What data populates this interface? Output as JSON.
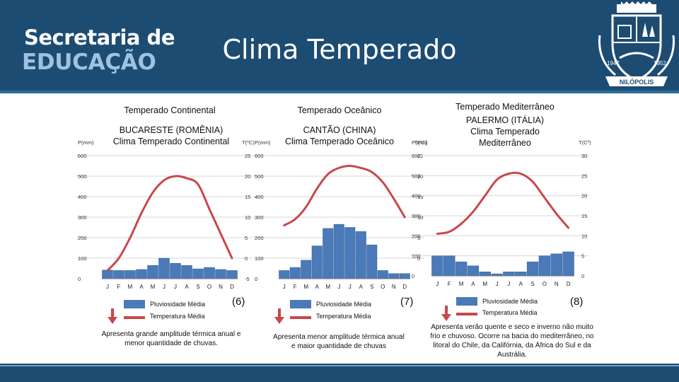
{
  "header": {
    "brand_line1": "Secretaria de",
    "brand_line2": "EDUCAÇÃO",
    "title": "Clima Temperado",
    "seal": {
      "year_left": "1947",
      "year_right": "1952",
      "city": "NILÓPOLIS"
    }
  },
  "colors": {
    "header_bg": "#1d4c73",
    "bar": "#4a7ab8",
    "temp_line": "#c8474c"
  },
  "sections": [
    {
      "heading": "Temperado Continental",
      "city_line1": "BUCARESTE (ROMÊNIA)",
      "city_line2": "Clima Temperado Continental",
      "legend_rain": "Pluviosidade Média",
      "legend_temp": "Temperatura Média",
      "figure": "(6)",
      "description": "Apresenta grande amplitude térmica anual e menor quantidade de chuvas."
    },
    {
      "heading": "Temperado Oceânico",
      "city_line1": "CANTÃO (CHINA)",
      "city_line2": "Clima Temperado Oceânico",
      "legend_rain": "Pluviosidade Média",
      "legend_temp": "Temperatura Média",
      "figure": "(7)",
      "description": "Apresenta menor amplitude térmica anual e maior quantidade de chuvas"
    },
    {
      "heading": "Temperado Mediterrâneo",
      "city_line1": "PALERMO (ITÁLIA)",
      "city_line2": "Clima Temperado",
      "city_line3": "Mediterrâneo",
      "legend_rain": "Pluviosidade Média",
      "legend_temp": "Temperatura Média",
      "figure": "(8)",
      "description": "Apresenta verão quente e seco e inverno não muito frio e chuvoso. Ocorre na bacia do mediterrâneo, no litoral do Chile, da Califórnia, da África do Sul e da Austrália."
    }
  ],
  "chart_data": [
    {
      "type": "bar",
      "categories": [
        "J",
        "F",
        "M",
        "A",
        "M",
        "J",
        "J",
        "A",
        "S",
        "O",
        "N",
        "D"
      ],
      "series": [
        {
          "name": "Pluviosidade Média",
          "type": "bar",
          "axis": "left",
          "values": [
            42,
            40,
            40,
            45,
            65,
            100,
            75,
            65,
            48,
            55,
            45,
            40
          ]
        },
        {
          "name": "Temperatura Média",
          "type": "line",
          "axis": "right",
          "values": [
            -3,
            0,
            5,
            11,
            16,
            19,
            20,
            19.5,
            18,
            12,
            6,
            0
          ]
        }
      ],
      "ylabel": "P(mm)",
      "y2label": "T(ºC)",
      "ylim": [
        0,
        600
      ],
      "y2lim": [
        -5,
        25
      ],
      "yticks": [
        "600",
        "500",
        "400",
        "300",
        "200",
        "100",
        "0"
      ],
      "y2ticks": [
        "25",
        "20",
        "15",
        "10",
        "5",
        "0",
        "-5"
      ],
      "grid": true
    },
    {
      "type": "bar",
      "categories": [
        "J",
        "F",
        "M",
        "A",
        "M",
        "J",
        "J",
        "A",
        "S",
        "O",
        "N",
        "D"
      ],
      "series": [
        {
          "name": "Pluviosidade Média",
          "type": "bar",
          "axis": "left",
          "values": [
            40,
            55,
            90,
            160,
            245,
            265,
            250,
            230,
            165,
            40,
            25,
            25
          ]
        },
        {
          "name": "Temperatura Média",
          "type": "line",
          "axis": "right",
          "values": [
            13,
            14.5,
            17.5,
            22,
            25.5,
            27,
            27.5,
            27,
            26,
            23.5,
            19.5,
            15
          ]
        }
      ],
      "ylabel": "P(mm)",
      "y2label": "T(ºC)",
      "ylim": [
        0,
        600
      ],
      "y2lim": [
        0,
        30
      ],
      "yticks": [
        "600",
        "500",
        "400",
        "300",
        "200",
        "100",
        "0"
      ],
      "y2ticks": [
        "25",
        "20",
        "15",
        "10",
        "5",
        "0"
      ],
      "grid": true
    },
    {
      "type": "bar",
      "categories": [
        "J",
        "F",
        "M",
        "A",
        "M",
        "J",
        "J",
        "A",
        "S",
        "O",
        "N",
        "D"
      ],
      "series": [
        {
          "name": "Pluviosidade Média",
          "type": "bar",
          "axis": "left",
          "values": [
            100,
            100,
            70,
            50,
            20,
            10,
            20,
            20,
            70,
            100,
            110,
            120
          ]
        },
        {
          "name": "Temperatura Média",
          "type": "line",
          "axis": "right",
          "values": [
            10.5,
            11,
            13,
            16,
            20,
            24,
            25.5,
            25.5,
            23.5,
            19.5,
            15.5,
            12
          ]
        }
      ],
      "ylabel": "P(mm)",
      "y2label": "T(Cº)",
      "ylim": [
        0,
        600
      ],
      "y2lim": [
        0,
        30
      ],
      "yticks": [
        "600",
        "500",
        "400",
        "300",
        "200",
        "100",
        "0"
      ],
      "y2ticks": [
        "30",
        "25",
        "20",
        "15",
        "10",
        "5",
        "0"
      ],
      "grid": true
    }
  ]
}
